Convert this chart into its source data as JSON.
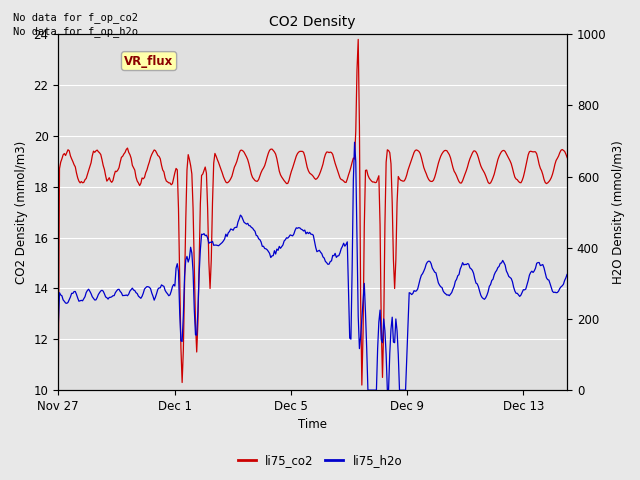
{
  "title": "CO2 Density",
  "xlabel": "Time",
  "ylabel_left": "CO2 Density (mmol/m3)",
  "ylabel_right": "H2O Density (mmol/m3)",
  "ylim_left": [
    10,
    24
  ],
  "ylim_right": [
    0,
    1000
  ],
  "yticks_left": [
    10,
    12,
    14,
    16,
    18,
    20,
    22,
    24
  ],
  "yticks_right": [
    0,
    200,
    400,
    600,
    800,
    1000
  ],
  "no_data_text_1": "No data for f_op_co2",
  "no_data_text_2": "No data for f_op_h2o",
  "vr_flux_label": "VR_flux",
  "legend_entries": [
    "li75_co2",
    "li75_h2o"
  ],
  "legend_colors": [
    "#cc0000",
    "#0000cc"
  ],
  "background_color": "#e8e8e8",
  "plot_bg_color": "#e0e0e0",
  "grid_color": "#ffffff",
  "xtick_labels": [
    "Nov 27",
    "Dec 1",
    "Dec 5",
    "Dec 9",
    "Dec 13"
  ],
  "xtick_days_offset": [
    0,
    4,
    8,
    12,
    16
  ],
  "xlim": [
    0,
    17.5
  ]
}
